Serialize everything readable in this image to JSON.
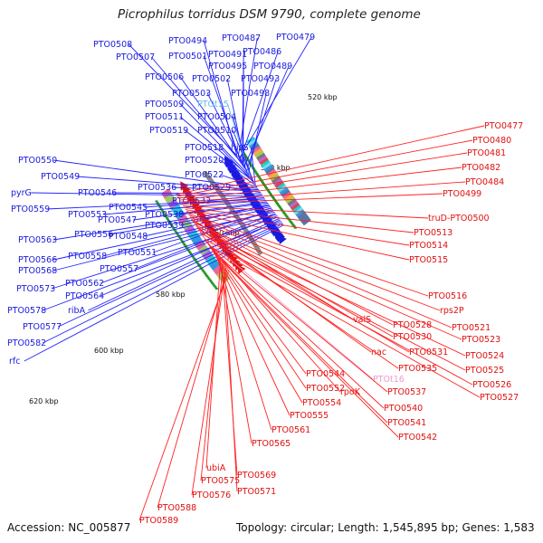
{
  "title": "Picrophilus torridus DSM 9790, complete genome",
  "accession": "Accession: NC_005877",
  "topology": "Topology: circular; Length: 1,545,895 bp; Genes: 1,583",
  "colors": {
    "forward_gene": "#1a1adc",
    "reverse_gene": "#e01010",
    "leader_forward": "#2222ff",
    "leader_reverse": "#ff2222",
    "backbone": "#888888",
    "rna_label": "#66bbee",
    "rna_label_rev": "#ee99cc"
  },
  "kbp_labels": [
    "520 kbp",
    "540 kbp",
    "560 kbp",
    "580 kbp",
    "600 kbp",
    "620 kbp"
  ],
  "forward_labels": [
    "PTO0508",
    "PTO0494",
    "PTO0487",
    "PTO0479",
    "PTO0486",
    "PTO0507",
    "PTO0501",
    "PTO0491",
    "PTO0495",
    "PTO0489",
    "PTO0506",
    "PTO0502",
    "PTO0493",
    "PTO0503",
    "PTO0498",
    "PTO0509",
    "PTOt15",
    "PTO0511",
    "PTO0504",
    "PTO0519",
    "PTO0510",
    "PTO0518",
    "hisS",
    "PTO0520",
    "PTO0522",
    "PTO0550",
    "PTO0549",
    "PTO0536",
    "PTO0529",
    "PTO0546",
    "PTO0533",
    "pyrG",
    "PTO0545",
    "PTO0559",
    "PTO0553",
    "PTO0547",
    "PTO0538",
    "PTO0539",
    "PTO0563",
    "PTO0556",
    "PTO0548",
    "PTO0551",
    "PTO0558",
    "PTO0566",
    "PTO0557",
    "PTO0568",
    "PTO0562",
    "PTO0573",
    "PTO0564",
    "ribA",
    "PTO0578",
    "PTO0577",
    "PTO0582",
    "rfc"
  ],
  "reverse_labels": [
    "PTO0477",
    "PTO0480",
    "PTO0481",
    "PTO0482",
    "PTO0484",
    "PTO0499",
    "truD-PTO0500",
    "PTO0513",
    "PTO0514",
    "PTO0515",
    "PTO0516",
    "rps2P",
    "PTO0521",
    "valS",
    "PTO0528",
    "PTO0523",
    "PTO0530",
    "nac",
    "PTO0531",
    "PTO0524",
    "PTO0535",
    "PTO0525",
    "PTO0544",
    "PTOt16",
    "PTO0526",
    "PTO0552",
    "rpoK",
    "PTO0537",
    "PTO0527",
    "PTO0554",
    "PTO0540",
    "PTO0555",
    "PTO0541",
    "PTO0561",
    "PTO0542",
    "PTO0565",
    "ubiA",
    "PTO0569",
    "PTO0575",
    "PTO0571",
    "PTO0576",
    "PTO0588",
    "PTO0589"
  ]
}
